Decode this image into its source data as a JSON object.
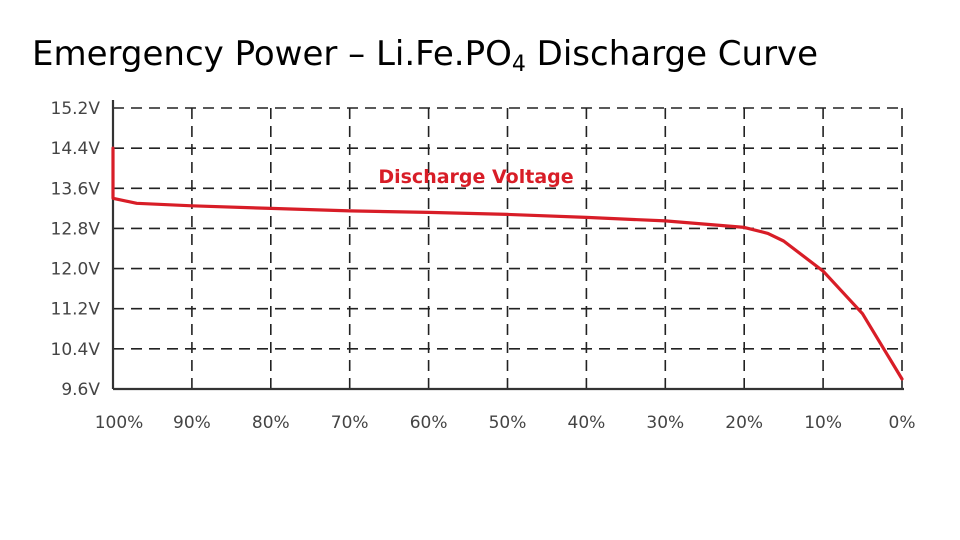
{
  "slide": {
    "title_main": "Emergency Power – Li.Fe.PO",
    "title_sub": "4",
    "title_tail": " Discharge Curve"
  },
  "colors": {
    "series": "#d81d27",
    "axis": "#333333",
    "grid": "#222222",
    "tick_text": "#444444",
    "background": "#ffffff"
  },
  "chart_data": {
    "type": "line",
    "title": "",
    "xlabel": "",
    "ylabel": "",
    "x_categories": [
      "100%",
      "90%",
      "80%",
      "70%",
      "60%",
      "50%",
      "40%",
      "30%",
      "20%",
      "10%",
      "0%"
    ],
    "y_ticks": [
      "15.2V",
      "14.4V",
      "13.6V",
      "12.8V",
      "12.0V",
      "11.2V",
      "10.4V",
      "9.6V"
    ],
    "xlim": [
      100,
      0
    ],
    "ylim": [
      9.6,
      15.2
    ],
    "grid": true,
    "grid_style": "dashed",
    "series": [
      {
        "name": "Discharge Voltage",
        "points": [
          {
            "x": 100,
            "y": 14.4
          },
          {
            "x": 100,
            "y": 13.4
          },
          {
            "x": 97,
            "y": 13.3
          },
          {
            "x": 90,
            "y": 13.25
          },
          {
            "x": 80,
            "y": 13.2
          },
          {
            "x": 70,
            "y": 13.15
          },
          {
            "x": 60,
            "y": 13.12
          },
          {
            "x": 50,
            "y": 13.08
          },
          {
            "x": 40,
            "y": 13.02
          },
          {
            "x": 30,
            "y": 12.95
          },
          {
            "x": 20,
            "y": 12.82
          },
          {
            "x": 17,
            "y": 12.7
          },
          {
            "x": 15,
            "y": 12.55
          },
          {
            "x": 10,
            "y": 11.95
          },
          {
            "x": 5,
            "y": 11.1
          },
          {
            "x": 0,
            "y": 9.8
          }
        ]
      }
    ]
  }
}
